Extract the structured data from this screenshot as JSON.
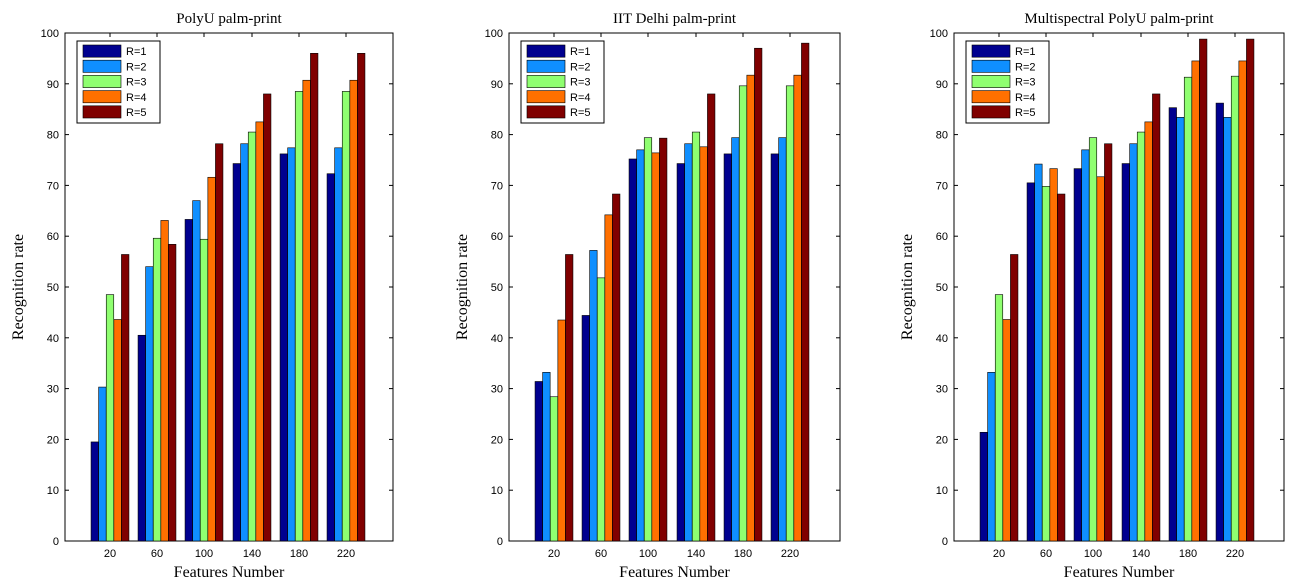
{
  "colors": {
    "R=1": "#00008f",
    "R=2": "#0f8fff",
    "R=3": "#8fff70",
    "R=4": "#ff7000",
    "R=5": "#800000",
    "axes": "#000000",
    "background": "#ffffff"
  },
  "chart_data": [
    {
      "type": "bar",
      "title": "PolyU palm-print",
      "xlabel": "Features Number",
      "ylabel": "Recognition rate",
      "categories": [
        "20",
        "60",
        "100",
        "140",
        "180",
        "220"
      ],
      "ylim": [
        0,
        100
      ],
      "yticks": [
        0,
        10,
        20,
        30,
        40,
        50,
        60,
        70,
        80,
        90,
        100
      ],
      "legend_position": "top-left",
      "grid": false,
      "series": [
        {
          "name": "R=1",
          "values": [
            19.5,
            40.5,
            63.3,
            74.3,
            76.2,
            72.3
          ]
        },
        {
          "name": "R=2",
          "values": [
            30.3,
            54.0,
            67.0,
            78.2,
            77.4,
            77.4
          ]
        },
        {
          "name": "R=3",
          "values": [
            48.5,
            59.6,
            59.4,
            80.5,
            88.5,
            88.5
          ]
        },
        {
          "name": "R=4",
          "values": [
            43.6,
            63.1,
            71.6,
            82.5,
            90.7,
            90.7
          ]
        },
        {
          "name": "R=5",
          "values": [
            56.4,
            58.4,
            78.2,
            88.0,
            96.0,
            96.0
          ]
        }
      ]
    },
    {
      "type": "bar",
      "title": "IIT Delhi palm-print",
      "xlabel": "Features Number",
      "ylabel": "Recognition rate",
      "categories": [
        "20",
        "60",
        "100",
        "140",
        "180",
        "220"
      ],
      "ylim": [
        0,
        100
      ],
      "yticks": [
        0,
        10,
        20,
        30,
        40,
        50,
        60,
        70,
        80,
        90,
        100
      ],
      "legend_position": "top-left",
      "grid": false,
      "series": [
        {
          "name": "R=1",
          "values": [
            31.4,
            44.4,
            75.2,
            74.3,
            76.2,
            76.2
          ]
        },
        {
          "name": "R=2",
          "values": [
            33.2,
            57.2,
            77.0,
            78.2,
            79.4,
            79.4
          ]
        },
        {
          "name": "R=3",
          "values": [
            28.4,
            51.8,
            79.4,
            80.5,
            89.6,
            89.6
          ]
        },
        {
          "name": "R=4",
          "values": [
            43.5,
            64.2,
            76.4,
            77.6,
            91.7,
            91.7
          ]
        },
        {
          "name": "R=5",
          "values": [
            56.4,
            68.3,
            79.3,
            88.0,
            97.0,
            98.0
          ]
        }
      ]
    },
    {
      "type": "bar",
      "title": "Multispectral PolyU palm-print",
      "xlabel": "Features Number",
      "ylabel": "Recognition rate",
      "categories": [
        "20",
        "60",
        "100",
        "140",
        "180",
        "220"
      ],
      "ylim": [
        0,
        100
      ],
      "yticks": [
        0,
        10,
        20,
        30,
        40,
        50,
        60,
        70,
        80,
        90,
        100
      ],
      "legend_position": "top-left",
      "grid": false,
      "series": [
        {
          "name": "R=1",
          "values": [
            21.4,
            70.5,
            73.3,
            74.3,
            85.3,
            86.2
          ]
        },
        {
          "name": "R=2",
          "values": [
            33.2,
            74.2,
            77.0,
            78.2,
            83.4,
            83.4
          ]
        },
        {
          "name": "R=3",
          "values": [
            48.5,
            69.8,
            79.4,
            80.5,
            91.3,
            91.5
          ]
        },
        {
          "name": "R=4",
          "values": [
            43.6,
            73.3,
            71.7,
            82.5,
            94.5,
            94.5
          ]
        },
        {
          "name": "R=5",
          "values": [
            56.4,
            68.3,
            78.2,
            88.0,
            98.8,
            98.8
          ]
        }
      ]
    }
  ]
}
